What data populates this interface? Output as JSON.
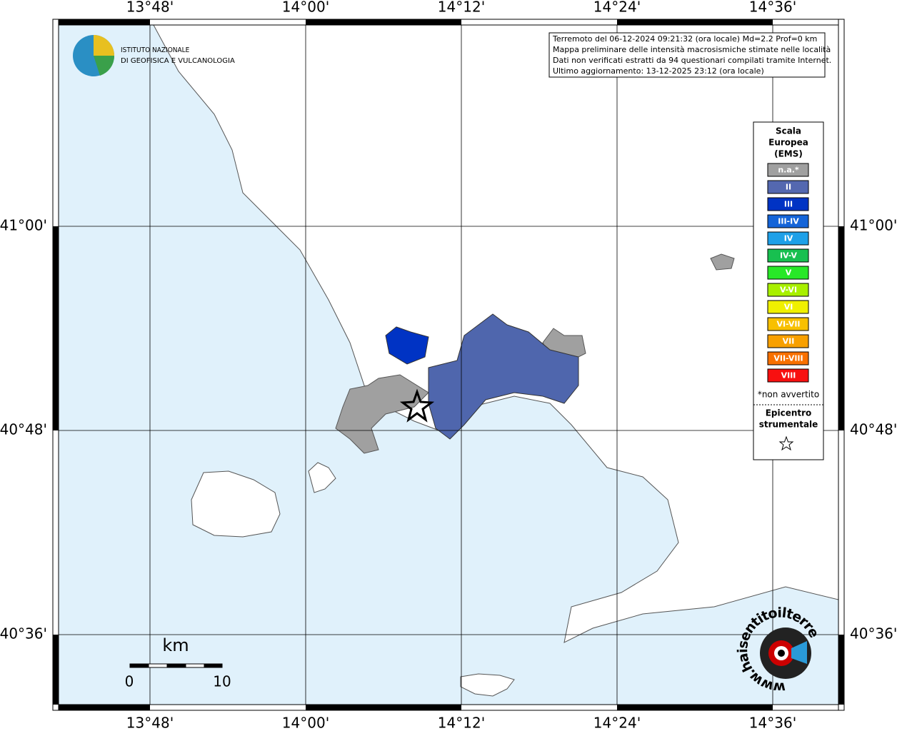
{
  "map": {
    "lon_labels": [
      "13°48'",
      "14°00'",
      "14°12'",
      "14°24'",
      "14°36'"
    ],
    "lat_labels": [
      "41°00'",
      "40°48'",
      "40°36'"
    ],
    "info": [
      "Terremoto del 06-12-2024 09:21:32 (ora locale) Md=2.2 Prof=0 km",
      "Mappa preliminare delle intensità macrosismiche stimate nelle località",
      "Dati non verificati estratti da 94 questionari compilati tramite Internet.",
      "Ultimo aggiornamento: 13-12-2025 23:12 (ora locale)"
    ],
    "logo": [
      "ISTITUTO NAZIONALE",
      "DI GEOFISICA E VULCANOLOGIA"
    ],
    "legend": {
      "title": [
        "Scala",
        "Europea",
        "(EMS)"
      ],
      "items": [
        {
          "label": "n.a.*",
          "color": "#a0a0a0"
        },
        {
          "label": "II",
          "color": "#5468b0"
        },
        {
          "label": "III",
          "color": "#0033c4"
        },
        {
          "label": "III-IV",
          "color": "#1464d8"
        },
        {
          "label": "IV",
          "color": "#1ea0e8"
        },
        {
          "label": "IV-V",
          "color": "#18c050"
        },
        {
          "label": "V",
          "color": "#28e828"
        },
        {
          "label": "V-VI",
          "color": "#a8f000"
        },
        {
          "label": "VI",
          "color": "#f0f000"
        },
        {
          "label": "VI-VII",
          "color": "#f8c000"
        },
        {
          "label": "VII",
          "color": "#f8a000"
        },
        {
          "label": "VII-VIII",
          "color": "#f87000"
        },
        {
          "label": "VIII",
          "color": "#f81010"
        }
      ],
      "note": "*non avvertito",
      "epicenter": [
        "Epicentro",
        "strumentale"
      ]
    },
    "scale": {
      "unit": "km",
      "labels": [
        "0",
        "10"
      ]
    },
    "badge": "www.haisentitoilterremoto.it"
  }
}
